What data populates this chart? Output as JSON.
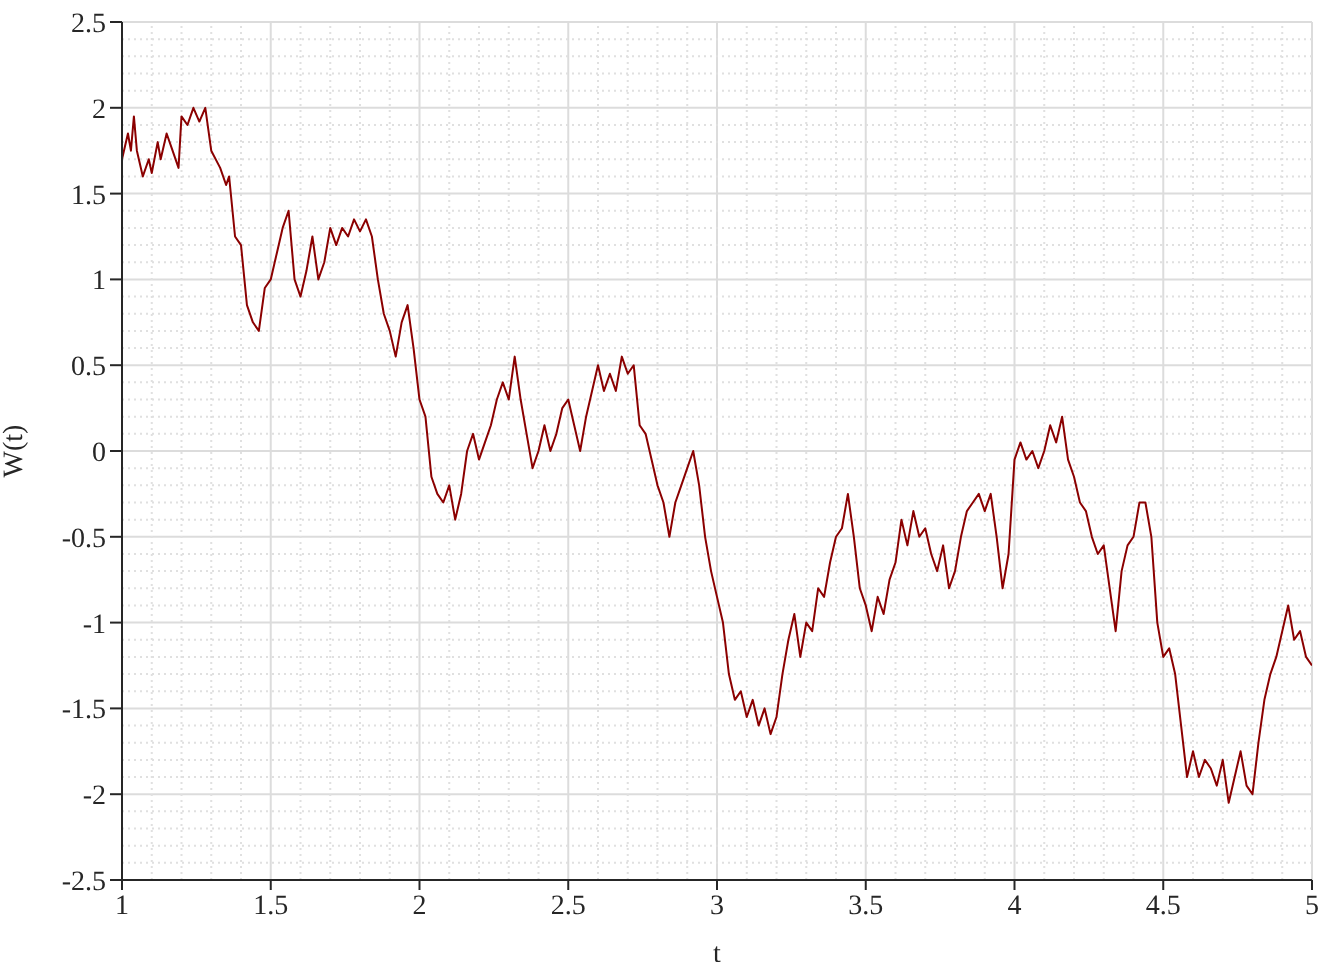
{
  "chart_data": {
    "type": "line",
    "xlabel": "t",
    "ylabel": "W(t)",
    "xlim": [
      1,
      5
    ],
    "xticks": [
      1,
      1.5,
      2,
      2.5,
      3,
      3.5,
      4,
      4.5,
      5
    ],
    "ylim": [
      -2.5,
      2.5
    ],
    "yticks": [
      -2.5,
      -2,
      -1.5,
      -1,
      -0.5,
      0,
      0.5,
      1,
      1.5,
      2,
      2.5
    ],
    "grid": true,
    "marker": "none",
    "line_style": "solid",
    "series": [
      {
        "color": "#8b0000",
        "x": [
          1.0,
          1.02,
          1.03,
          1.04,
          1.05,
          1.07,
          1.09,
          1.1,
          1.12,
          1.13,
          1.15,
          1.17,
          1.19,
          1.2,
          1.22,
          1.24,
          1.26,
          1.28,
          1.3,
          1.33,
          1.35,
          1.36,
          1.38,
          1.4,
          1.42,
          1.44,
          1.46,
          1.48,
          1.5,
          1.52,
          1.54,
          1.56,
          1.58,
          1.6,
          1.62,
          1.64,
          1.66,
          1.68,
          1.7,
          1.72,
          1.74,
          1.76,
          1.78,
          1.8,
          1.82,
          1.84,
          1.86,
          1.88,
          1.9,
          1.92,
          1.94,
          1.96,
          1.98,
          2.0,
          2.02,
          2.04,
          2.06,
          2.08,
          2.1,
          2.12,
          2.14,
          2.16,
          2.18,
          2.2,
          2.22,
          2.24,
          2.26,
          2.28,
          2.3,
          2.32,
          2.34,
          2.36,
          2.38,
          2.4,
          2.42,
          2.44,
          2.46,
          2.48,
          2.5,
          2.52,
          2.54,
          2.56,
          2.58,
          2.6,
          2.62,
          2.64,
          2.66,
          2.68,
          2.7,
          2.72,
          2.74,
          2.76,
          2.78,
          2.8,
          2.82,
          2.84,
          2.86,
          2.88,
          2.9,
          2.92,
          2.94,
          2.96,
          2.98,
          3.0,
          3.02,
          3.04,
          3.06,
          3.08,
          3.1,
          3.12,
          3.14,
          3.16,
          3.18,
          3.2,
          3.22,
          3.24,
          3.26,
          3.28,
          3.3,
          3.32,
          3.34,
          3.36,
          3.38,
          3.4,
          3.42,
          3.44,
          3.46,
          3.48,
          3.5,
          3.52,
          3.54,
          3.56,
          3.58,
          3.6,
          3.62,
          3.64,
          3.66,
          3.68,
          3.7,
          3.72,
          3.74,
          3.76,
          3.78,
          3.8,
          3.82,
          3.84,
          3.86,
          3.88,
          3.9,
          3.92,
          3.94,
          3.96,
          3.98,
          4.0,
          4.02,
          4.04,
          4.06,
          4.08,
          4.1,
          4.12,
          4.14,
          4.16,
          4.18,
          4.2,
          4.22,
          4.24,
          4.26,
          4.28,
          4.3,
          4.32,
          4.34,
          4.36,
          4.38,
          4.4,
          4.42,
          4.44,
          4.46,
          4.48,
          4.5,
          4.52,
          4.54,
          4.56,
          4.58,
          4.6,
          4.62,
          4.64,
          4.66,
          4.68,
          4.7,
          4.72,
          4.74,
          4.76,
          4.78,
          4.8,
          4.82,
          4.84,
          4.86,
          4.88,
          4.9,
          4.92,
          4.94,
          4.96,
          4.98,
          5.0
        ],
        "values": [
          1.7,
          1.85,
          1.75,
          1.95,
          1.75,
          1.6,
          1.7,
          1.62,
          1.8,
          1.7,
          1.85,
          1.75,
          1.65,
          1.95,
          1.9,
          2.0,
          1.92,
          2.0,
          1.75,
          1.65,
          1.55,
          1.6,
          1.25,
          1.2,
          0.85,
          0.75,
          0.7,
          0.95,
          1.0,
          1.15,
          1.3,
          1.4,
          1.0,
          0.9,
          1.05,
          1.25,
          1.0,
          1.1,
          1.3,
          1.2,
          1.3,
          1.25,
          1.35,
          1.28,
          1.35,
          1.25,
          1.0,
          0.8,
          0.7,
          0.55,
          0.75,
          0.85,
          0.6,
          0.3,
          0.2,
          -0.15,
          -0.25,
          -0.3,
          -0.2,
          -0.4,
          -0.25,
          0.0,
          0.1,
          -0.05,
          0.05,
          0.15,
          0.3,
          0.4,
          0.3,
          0.55,
          0.3,
          0.1,
          -0.1,
          0.0,
          0.15,
          0.0,
          0.1,
          0.25,
          0.3,
          0.15,
          0.0,
          0.2,
          0.35,
          0.5,
          0.35,
          0.45,
          0.35,
          0.55,
          0.45,
          0.5,
          0.15,
          0.1,
          -0.05,
          -0.2,
          -0.3,
          -0.5,
          -0.3,
          -0.2,
          -0.1,
          0.0,
          -0.2,
          -0.5,
          -0.7,
          -0.85,
          -1.0,
          -1.3,
          -1.45,
          -1.4,
          -1.55,
          -1.45,
          -1.6,
          -1.5,
          -1.65,
          -1.55,
          -1.3,
          -1.1,
          -0.95,
          -1.2,
          -1.0,
          -1.05,
          -0.8,
          -0.85,
          -0.65,
          -0.5,
          -0.45,
          -0.25,
          -0.5,
          -0.8,
          -0.9,
          -1.05,
          -0.85,
          -0.95,
          -0.75,
          -0.65,
          -0.4,
          -0.55,
          -0.35,
          -0.5,
          -0.45,
          -0.6,
          -0.7,
          -0.55,
          -0.8,
          -0.7,
          -0.5,
          -0.35,
          -0.3,
          -0.25,
          -0.35,
          -0.25,
          -0.5,
          -0.8,
          -0.6,
          -0.05,
          0.05,
          -0.05,
          0.0,
          -0.1,
          0.0,
          0.15,
          0.05,
          0.2,
          -0.05,
          -0.15,
          -0.3,
          -0.35,
          -0.5,
          -0.6,
          -0.55,
          -0.8,
          -1.05,
          -0.7,
          -0.55,
          -0.5,
          -0.3,
          -0.3,
          -0.5,
          -1.0,
          -1.2,
          -1.15,
          -1.3,
          -1.6,
          -1.9,
          -1.75,
          -1.9,
          -1.8,
          -1.85,
          -1.95,
          -1.8,
          -2.05,
          -1.9,
          -1.75,
          -1.95,
          -2.0,
          -1.7,
          -1.45,
          -1.3,
          -1.2,
          -1.05,
          -0.9,
          -1.1,
          -1.05,
          -1.2,
          -1.25
        ]
      }
    ]
  }
}
